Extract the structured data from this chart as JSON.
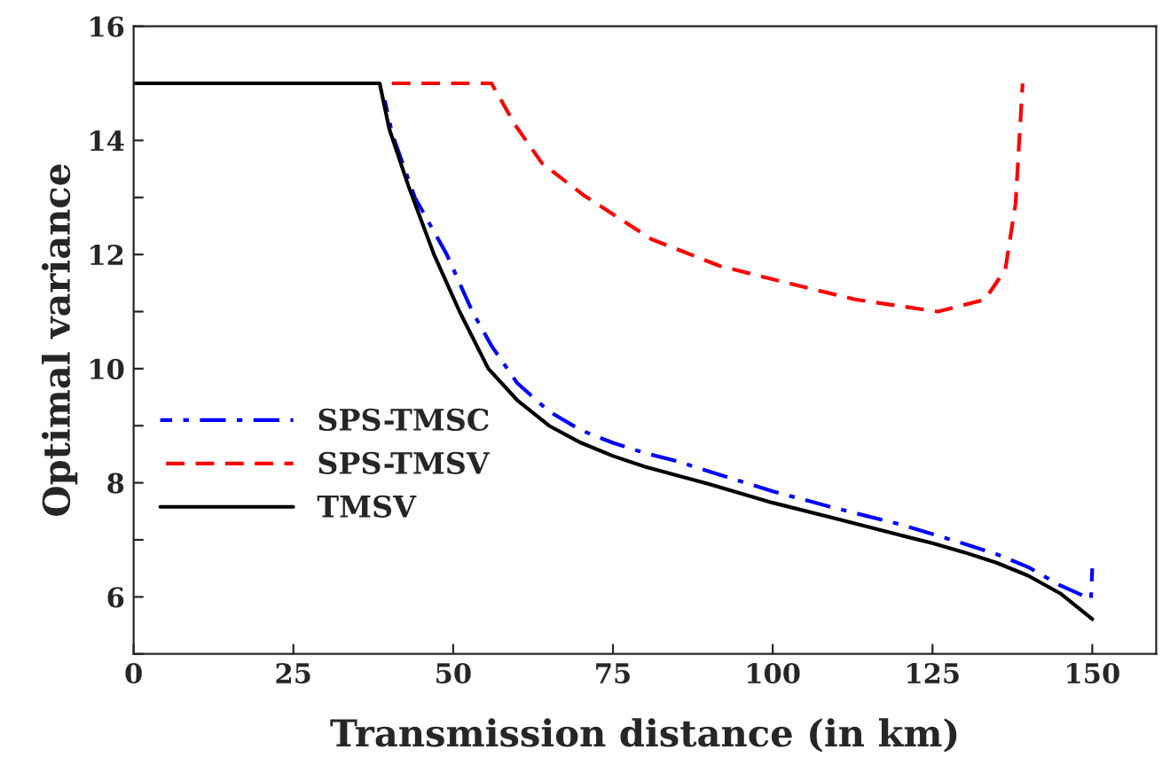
{
  "chart_data": {
    "type": "line",
    "xlabel": "Transmission distance (in km)",
    "ylabel": "Optimal variance",
    "xlim": [
      0,
      160
    ],
    "xticks": [
      0,
      25,
      50,
      75,
      100,
      125,
      150
    ],
    "ylim": [
      5,
      16
    ],
    "yticks": [
      {
        "value": 5,
        "label": null
      },
      6,
      {
        "value": 7,
        "label": null
      },
      8,
      {
        "value": 9,
        "label": null
      },
      10,
      {
        "value": 11,
        "label": null
      },
      12,
      {
        "value": 13,
        "label": null
      },
      14,
      {
        "value": 15,
        "label": null
      },
      16
    ],
    "grid": false,
    "legend": "left",
    "marker": "none",
    "series": [
      {
        "name": "SPS-TMSC",
        "color": "#0000ff",
        "line_style": "dashdot",
        "x": [
          39.3,
          40.5,
          44,
          49,
          53,
          56,
          60,
          65,
          70,
          75,
          80,
          85,
          90,
          100,
          110,
          120,
          125,
          130,
          135,
          140,
          145,
          149.8,
          150
        ],
        "values": [
          14.7,
          14.1,
          13.0,
          12.0,
          11.0,
          10.4,
          9.75,
          9.25,
          8.92,
          8.7,
          8.52,
          8.38,
          8.2,
          7.85,
          7.55,
          7.27,
          7.1,
          6.93,
          6.75,
          6.52,
          6.2,
          5.96,
          6.5
        ]
      },
      {
        "name": "SPS-TMSV",
        "color": "#ff0000",
        "line_style": "dashed",
        "x": [
          39.5,
          56,
          59.7,
          63.9,
          70.4,
          81.0,
          91.7,
          102.4,
          113.0,
          125.8,
          133.2,
          136.4,
          138.0,
          139.1
        ],
        "values": [
          15,
          15,
          14.27,
          13.6,
          13.04,
          12.27,
          11.8,
          11.5,
          11.21,
          11.0,
          11.21,
          11.74,
          12.9,
          15.0
        ]
      },
      {
        "name": "TMSV",
        "color": "#000000",
        "line_style": "solid",
        "x": [
          0,
          38.5,
          40,
          43,
          47,
          51,
          55.5,
          60,
          65,
          70,
          75,
          80,
          85,
          90,
          100,
          110,
          120,
          125,
          130,
          135,
          140,
          145,
          150
        ],
        "values": [
          15,
          15,
          14.2,
          13.2,
          12.0,
          11.0,
          10.0,
          9.45,
          9.0,
          8.7,
          8.47,
          8.28,
          8.13,
          7.98,
          7.65,
          7.37,
          7.08,
          6.94,
          6.78,
          6.6,
          6.37,
          6.06,
          5.61
        ]
      }
    ]
  }
}
